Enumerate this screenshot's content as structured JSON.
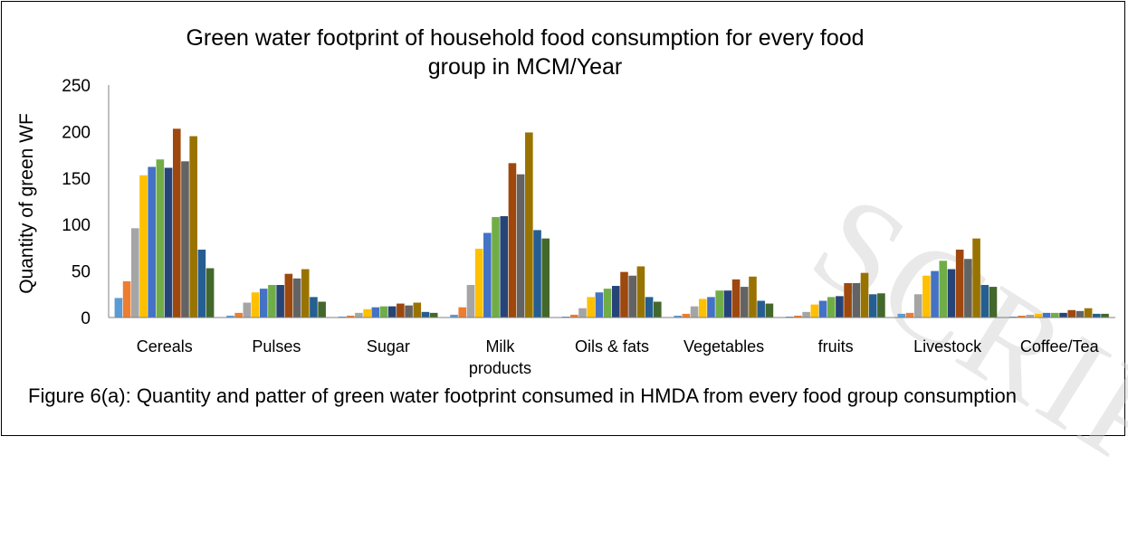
{
  "chart_data": {
    "type": "bar",
    "title": "Green water footprint of household food consumption for every food group in MCM/Year",
    "ylabel": "Quantity of green WF",
    "xlabel": "",
    "ylim": [
      0,
      250
    ],
    "yticks": [
      0,
      50,
      100,
      150,
      200,
      250
    ],
    "grid": false,
    "legend": "none",
    "categories": [
      "Cereals",
      "Pulses",
      "Sugar",
      "Milk products",
      "Oils & fats",
      "Vegetables",
      "fruits",
      "Livestock",
      "Coffee/Tea"
    ],
    "series_colors": [
      "#5b9bd5",
      "#ed7d31",
      "#a5a5a5",
      "#ffc000",
      "#4472c4",
      "#70ad47",
      "#264478",
      "#9e480e",
      "#636363",
      "#997300",
      "#255e91",
      "#43682b"
    ],
    "series": [
      {
        "values": [
          21,
          2,
          1,
          3,
          1,
          2,
          1,
          4,
          1
        ]
      },
      {
        "values": [
          39,
          5,
          2,
          11,
          3,
          4,
          2,
          5,
          2
        ]
      },
      {
        "values": [
          96,
          16,
          5,
          35,
          10,
          12,
          6,
          25,
          3
        ]
      },
      {
        "values": [
          153,
          27,
          9,
          74,
          22,
          20,
          14,
          45,
          4
        ]
      },
      {
        "values": [
          162,
          31,
          11,
          91,
          27,
          22,
          18,
          50,
          5
        ]
      },
      {
        "values": [
          170,
          35,
          12,
          108,
          31,
          29,
          22,
          61,
          5
        ]
      },
      {
        "values": [
          161,
          35,
          12,
          109,
          34,
          29,
          23,
          52,
          5
        ]
      },
      {
        "values": [
          203,
          47,
          15,
          166,
          49,
          41,
          37,
          73,
          8
        ]
      },
      {
        "values": [
          168,
          42,
          13,
          154,
          45,
          33,
          37,
          63,
          7
        ]
      },
      {
        "values": [
          195,
          52,
          16,
          199,
          55,
          44,
          48,
          85,
          10
        ]
      },
      {
        "values": [
          73,
          22,
          6,
          94,
          22,
          18,
          25,
          35,
          4
        ]
      },
      {
        "values": [
          53,
          17,
          5,
          85,
          17,
          15,
          26,
          33,
          4
        ]
      }
    ]
  },
  "caption": "Figure 6(a): Quantity and patter of green water footprint consumed in HMDA from every food group consumption",
  "watermark": "SCRIPT"
}
